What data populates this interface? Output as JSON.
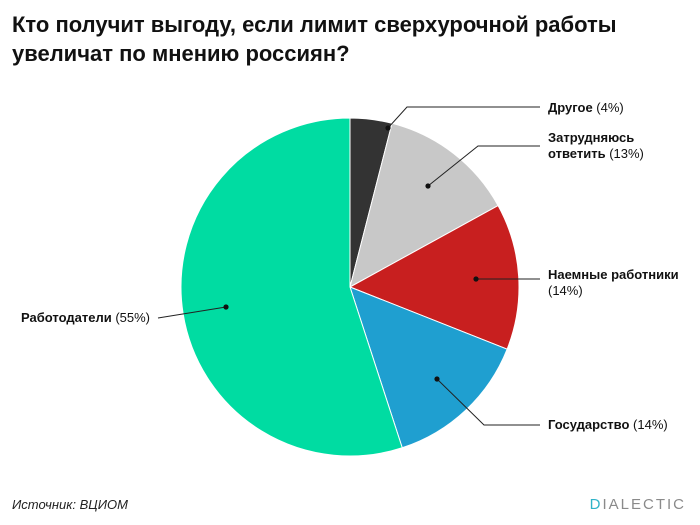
{
  "title_lines": [
    "Кто получит выгоду, если лимит сверхурочной работы",
    "увеличат по мнению россиян?"
  ],
  "source": "Источник: ВЦИОМ",
  "brand": {
    "first_letter": "D",
    "rest": "IALECTIC",
    "accent_color": "#2fb3c8"
  },
  "chart_data": {
    "type": "pie",
    "title": "Кто получит выгоду, если лимит сверхурочной работы увеличат по мнению россиян?",
    "start": "12 o'clock",
    "direction": "clockwise",
    "slices": [
      {
        "label_lines": [
          "Другое"
        ],
        "value_text": "(4%)",
        "value": 4,
        "color": "#333333"
      },
      {
        "label_lines": [
          "Затрудняюсь",
          "ответить"
        ],
        "value_text": "(13%)",
        "value": 13,
        "color": "#c8c8c8"
      },
      {
        "label_lines": [
          "Наемные работники"
        ],
        "value_text": "(14%)",
        "value": 14,
        "color": "#c81f1f"
      },
      {
        "label_lines": [
          "Государство"
        ],
        "value_text": "(14%)",
        "value": 14,
        "color": "#1f9fd0"
      },
      {
        "label_lines": [
          "Работодатели"
        ],
        "value_text": "(55%)",
        "value": 55,
        "color": "#00dca2"
      }
    ]
  }
}
